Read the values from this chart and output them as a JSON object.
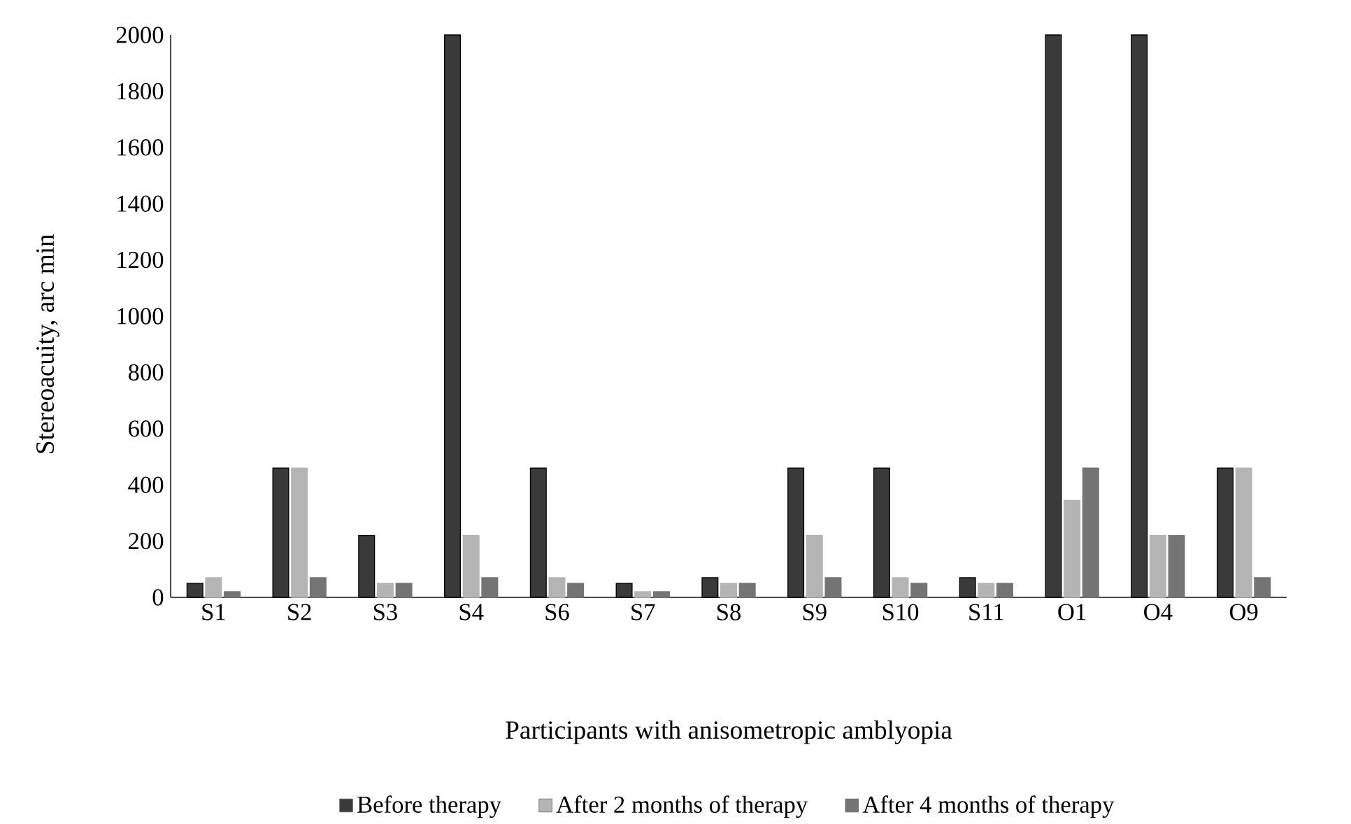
{
  "chart_data": {
    "type": "bar",
    "xlabel": "Participants with anisometropic amblyopia",
    "ylabel": "Stereoacuity, arc min",
    "categories": [
      "S1",
      "S2",
      "S3",
      "S4",
      "S6",
      "S7",
      "S8",
      "S9",
      "S10",
      "S11",
      "O1",
      "O4",
      "O9"
    ],
    "series": [
      {
        "name": "Before therapy",
        "color": "#3a3a3a",
        "values": [
          50,
          460,
          220,
          2000,
          460,
          50,
          70,
          460,
          460,
          70,
          2000,
          2000,
          460
        ]
      },
      {
        "name": "After 2 months of therapy",
        "color": "#b4b4b4",
        "values": [
          70,
          460,
          50,
          220,
          70,
          20,
          50,
          220,
          70,
          50,
          345,
          220,
          460
        ]
      },
      {
        "name": "After 4 months of therapy",
        "color": "#747474",
        "values": [
          20,
          70,
          50,
          70,
          50,
          20,
          50,
          70,
          50,
          50,
          460,
          220,
          70
        ]
      }
    ],
    "ylim": [
      0,
      2000
    ],
    "yticks": [
      0,
      200,
      400,
      600,
      800,
      1000,
      1200,
      1400,
      1600,
      1800,
      2000
    ],
    "grid": false,
    "legend": "bottom"
  }
}
